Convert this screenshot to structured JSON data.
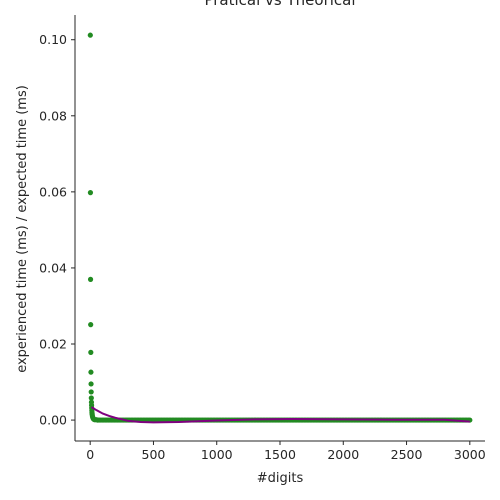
{
  "chart_data": {
    "type": "scatter",
    "title": "Pratical vs Theorical",
    "xlabel": "#digits",
    "ylabel": "experienced time (ms) / expected time (ms)",
    "xlim": [
      -120,
      3120
    ],
    "ylim": [
      -0.0055,
      0.1065
    ],
    "xticks": [
      0,
      500,
      1000,
      1500,
      2000,
      2500,
      3000
    ],
    "xtick_labels": [
      "0",
      "500",
      "1000",
      "1500",
      "2000",
      "2500",
      "3000"
    ],
    "yticks": [
      0.0,
      0.02,
      0.04,
      0.06,
      0.08,
      0.1
    ],
    "ytick_labels": [
      "0.00",
      "0.02",
      "0.04",
      "0.06",
      "0.08",
      "0.10"
    ],
    "grid": false,
    "scatter_color": "#228b22",
    "line_color": "#800080",
    "series": [
      {
        "kind": "scatter",
        "points": [
          [
            1,
            0.1012
          ],
          [
            2,
            0.0598
          ],
          [
            3,
            0.037
          ],
          [
            4,
            0.0251
          ],
          [
            5,
            0.0178
          ],
          [
            6,
            0.0126
          ],
          [
            7,
            0.0095
          ],
          [
            8,
            0.0074
          ],
          [
            9,
            0.0058
          ],
          [
            10,
            0.0047
          ],
          [
            11,
            0.0039
          ],
          [
            12,
            0.0032
          ],
          [
            13,
            0.0026
          ],
          [
            14,
            0.0021
          ],
          [
            15,
            0.0017
          ],
          [
            16,
            0.0014
          ],
          [
            18,
            0.001
          ],
          [
            20,
            0.0007
          ],
          [
            23,
            0.0005
          ],
          [
            26,
            0.0003
          ],
          [
            30,
            0.0002
          ],
          [
            35,
            0.0001
          ],
          [
            40,
            0.0001
          ],
          [
            50,
            0.0001
          ],
          [
            60,
            0.0
          ]
        ],
        "tail": {
          "x_start": 60,
          "x_end": 3000,
          "step": 12,
          "y": 0.0
        }
      },
      {
        "kind": "line",
        "points": [
          [
            10,
            0.0034
          ],
          [
            50,
            0.0026
          ],
          [
            100,
            0.0017
          ],
          [
            150,
            0.0011
          ],
          [
            200,
            0.0006
          ],
          [
            300,
            -0.0002
          ],
          [
            400,
            -0.0005
          ],
          [
            500,
            -0.0006
          ],
          [
            700,
            -0.0005
          ],
          [
            1000,
            -0.0001
          ],
          [
            1300,
            0.0002
          ],
          [
            1600,
            0.0003
          ],
          [
            2000,
            0.0002
          ],
          [
            2400,
            0.0001
          ],
          [
            2800,
            0.0001
          ],
          [
            3000,
            -0.0004
          ]
        ]
      }
    ]
  }
}
